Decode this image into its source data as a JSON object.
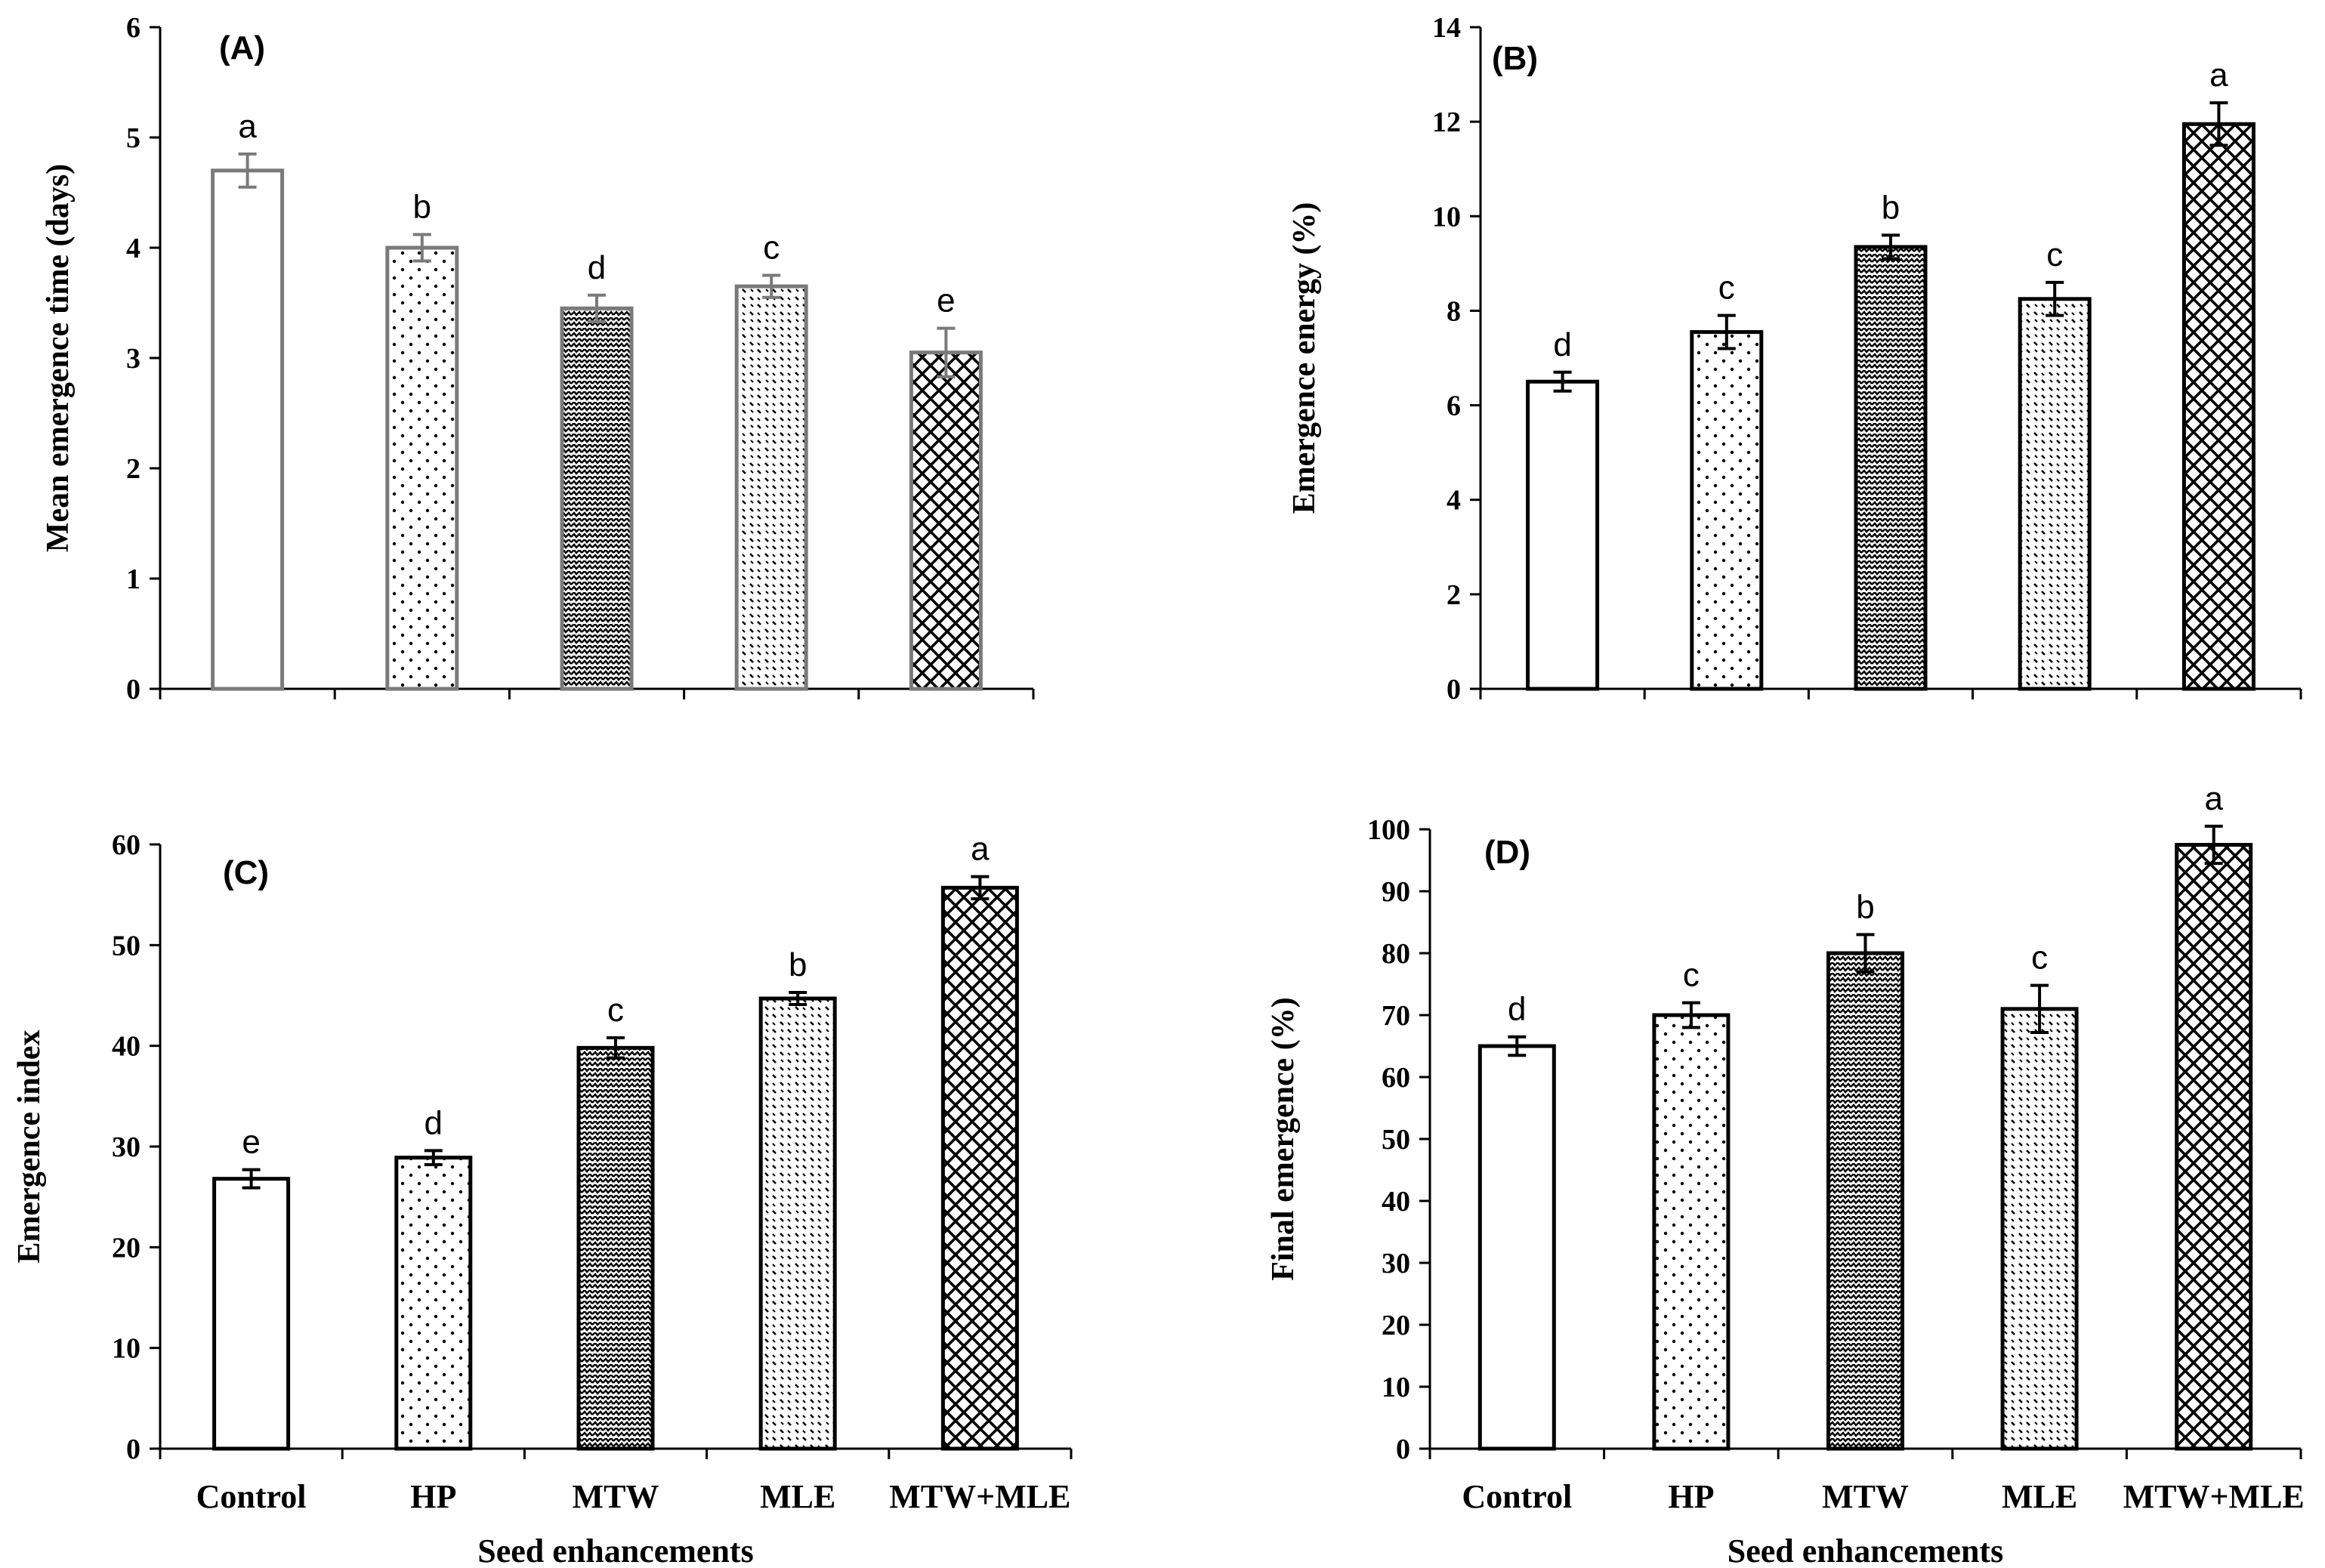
{
  "colors": {
    "axis": "#000000",
    "panel_a_outline": "#7a7a7a",
    "fill_background": "#ffffff",
    "pattern": "#000000"
  },
  "xlabel": "Seed enhancements",
  "categories": [
    "Control",
    "HP",
    "MTW",
    "MLE",
    "MTW+MLE"
  ],
  "patterns": [
    "none",
    "dots-sparse",
    "waves-dense",
    "dots-dashed",
    "crosshatch"
  ],
  "chart_data": [
    {
      "type": "bar",
      "panel_label": "(A)",
      "title": "",
      "ylabel": "Mean emergence time  (days)",
      "xlabel": "",
      "categories": [
        "Control",
        "HP",
        "MTW",
        "MLE",
        "MTW+MLE"
      ],
      "values": [
        4.7,
        4.0,
        3.45,
        3.65,
        3.05
      ],
      "errors": [
        0.15,
        0.12,
        0.12,
        0.1,
        0.22
      ],
      "significance": [
        "a",
        "b",
        "d",
        "c",
        "e"
      ],
      "ylim": [
        0,
        6
      ],
      "yticks": [
        0,
        1,
        2,
        3,
        4,
        5,
        6
      ],
      "show_category_labels": false,
      "grid": false
    },
    {
      "type": "bar",
      "panel_label": "(B)",
      "title": "",
      "ylabel": "Emergence energy (%)",
      "xlabel": "",
      "categories": [
        "Control",
        "HP",
        "MTW",
        "MLE",
        "MTW+MLE"
      ],
      "values": [
        6.5,
        7.55,
        9.35,
        8.25,
        11.95
      ],
      "errors": [
        0.2,
        0.35,
        0.25,
        0.35,
        0.45
      ],
      "significance": [
        "d",
        "c",
        "b",
        "c",
        "a"
      ],
      "ylim": [
        0,
        14
      ],
      "yticks": [
        0,
        2,
        4,
        6,
        8,
        10,
        12,
        14
      ],
      "show_category_labels": false,
      "grid": false
    },
    {
      "type": "bar",
      "panel_label": "(C)",
      "title": "",
      "ylabel": "Emergence index",
      "xlabel": "Seed enhancements",
      "categories": [
        "Control",
        "HP",
        "MTW",
        "MLE",
        "MTW+MLE"
      ],
      "values": [
        26.8,
        28.9,
        39.8,
        44.7,
        55.7
      ],
      "errors": [
        0.9,
        0.7,
        1.0,
        0.6,
        1.1
      ],
      "significance": [
        "e",
        "d",
        "c",
        "b",
        "a"
      ],
      "ylim": [
        0,
        60
      ],
      "yticks": [
        0,
        10,
        20,
        30,
        40,
        50,
        60
      ],
      "show_category_labels": true,
      "grid": false
    },
    {
      "type": "bar",
      "panel_label": "(D)",
      "title": "",
      "ylabel": "Final emergence (%)",
      "xlabel": "Seed enhancements",
      "categories": [
        "Control",
        "HP",
        "MTW",
        "MLE",
        "MTW+MLE"
      ],
      "values": [
        65,
        70,
        80,
        71,
        97.5
      ],
      "errors": [
        1.5,
        2.0,
        3.0,
        3.8,
        3.0
      ],
      "significance": [
        "d",
        "c",
        "b",
        "c",
        "a"
      ],
      "ylim": [
        0,
        100
      ],
      "yticks": [
        0,
        10,
        20,
        30,
        40,
        50,
        60,
        70,
        80,
        90,
        100
      ],
      "show_category_labels": true,
      "grid": false
    }
  ]
}
